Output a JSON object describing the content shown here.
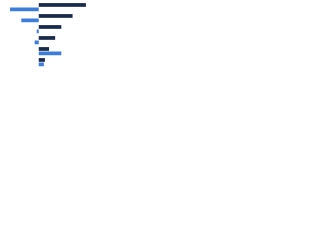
{
  "chart_data": {
    "type": "bar",
    "orientation": "horizontal",
    "categories": [
      null,
      null,
      null,
      null,
      null,
      null
    ],
    "series": [
      {
        "color": "#1a2a4a",
        "values": [
          46,
          33,
          22,
          16,
          10,
          6
        ]
      },
      {
        "color": "#3b7dd8",
        "values": [
          -28,
          -17,
          -2,
          -4,
          22,
          5
        ]
      }
    ],
    "xlim": [
      -30,
      50
    ]
  }
}
